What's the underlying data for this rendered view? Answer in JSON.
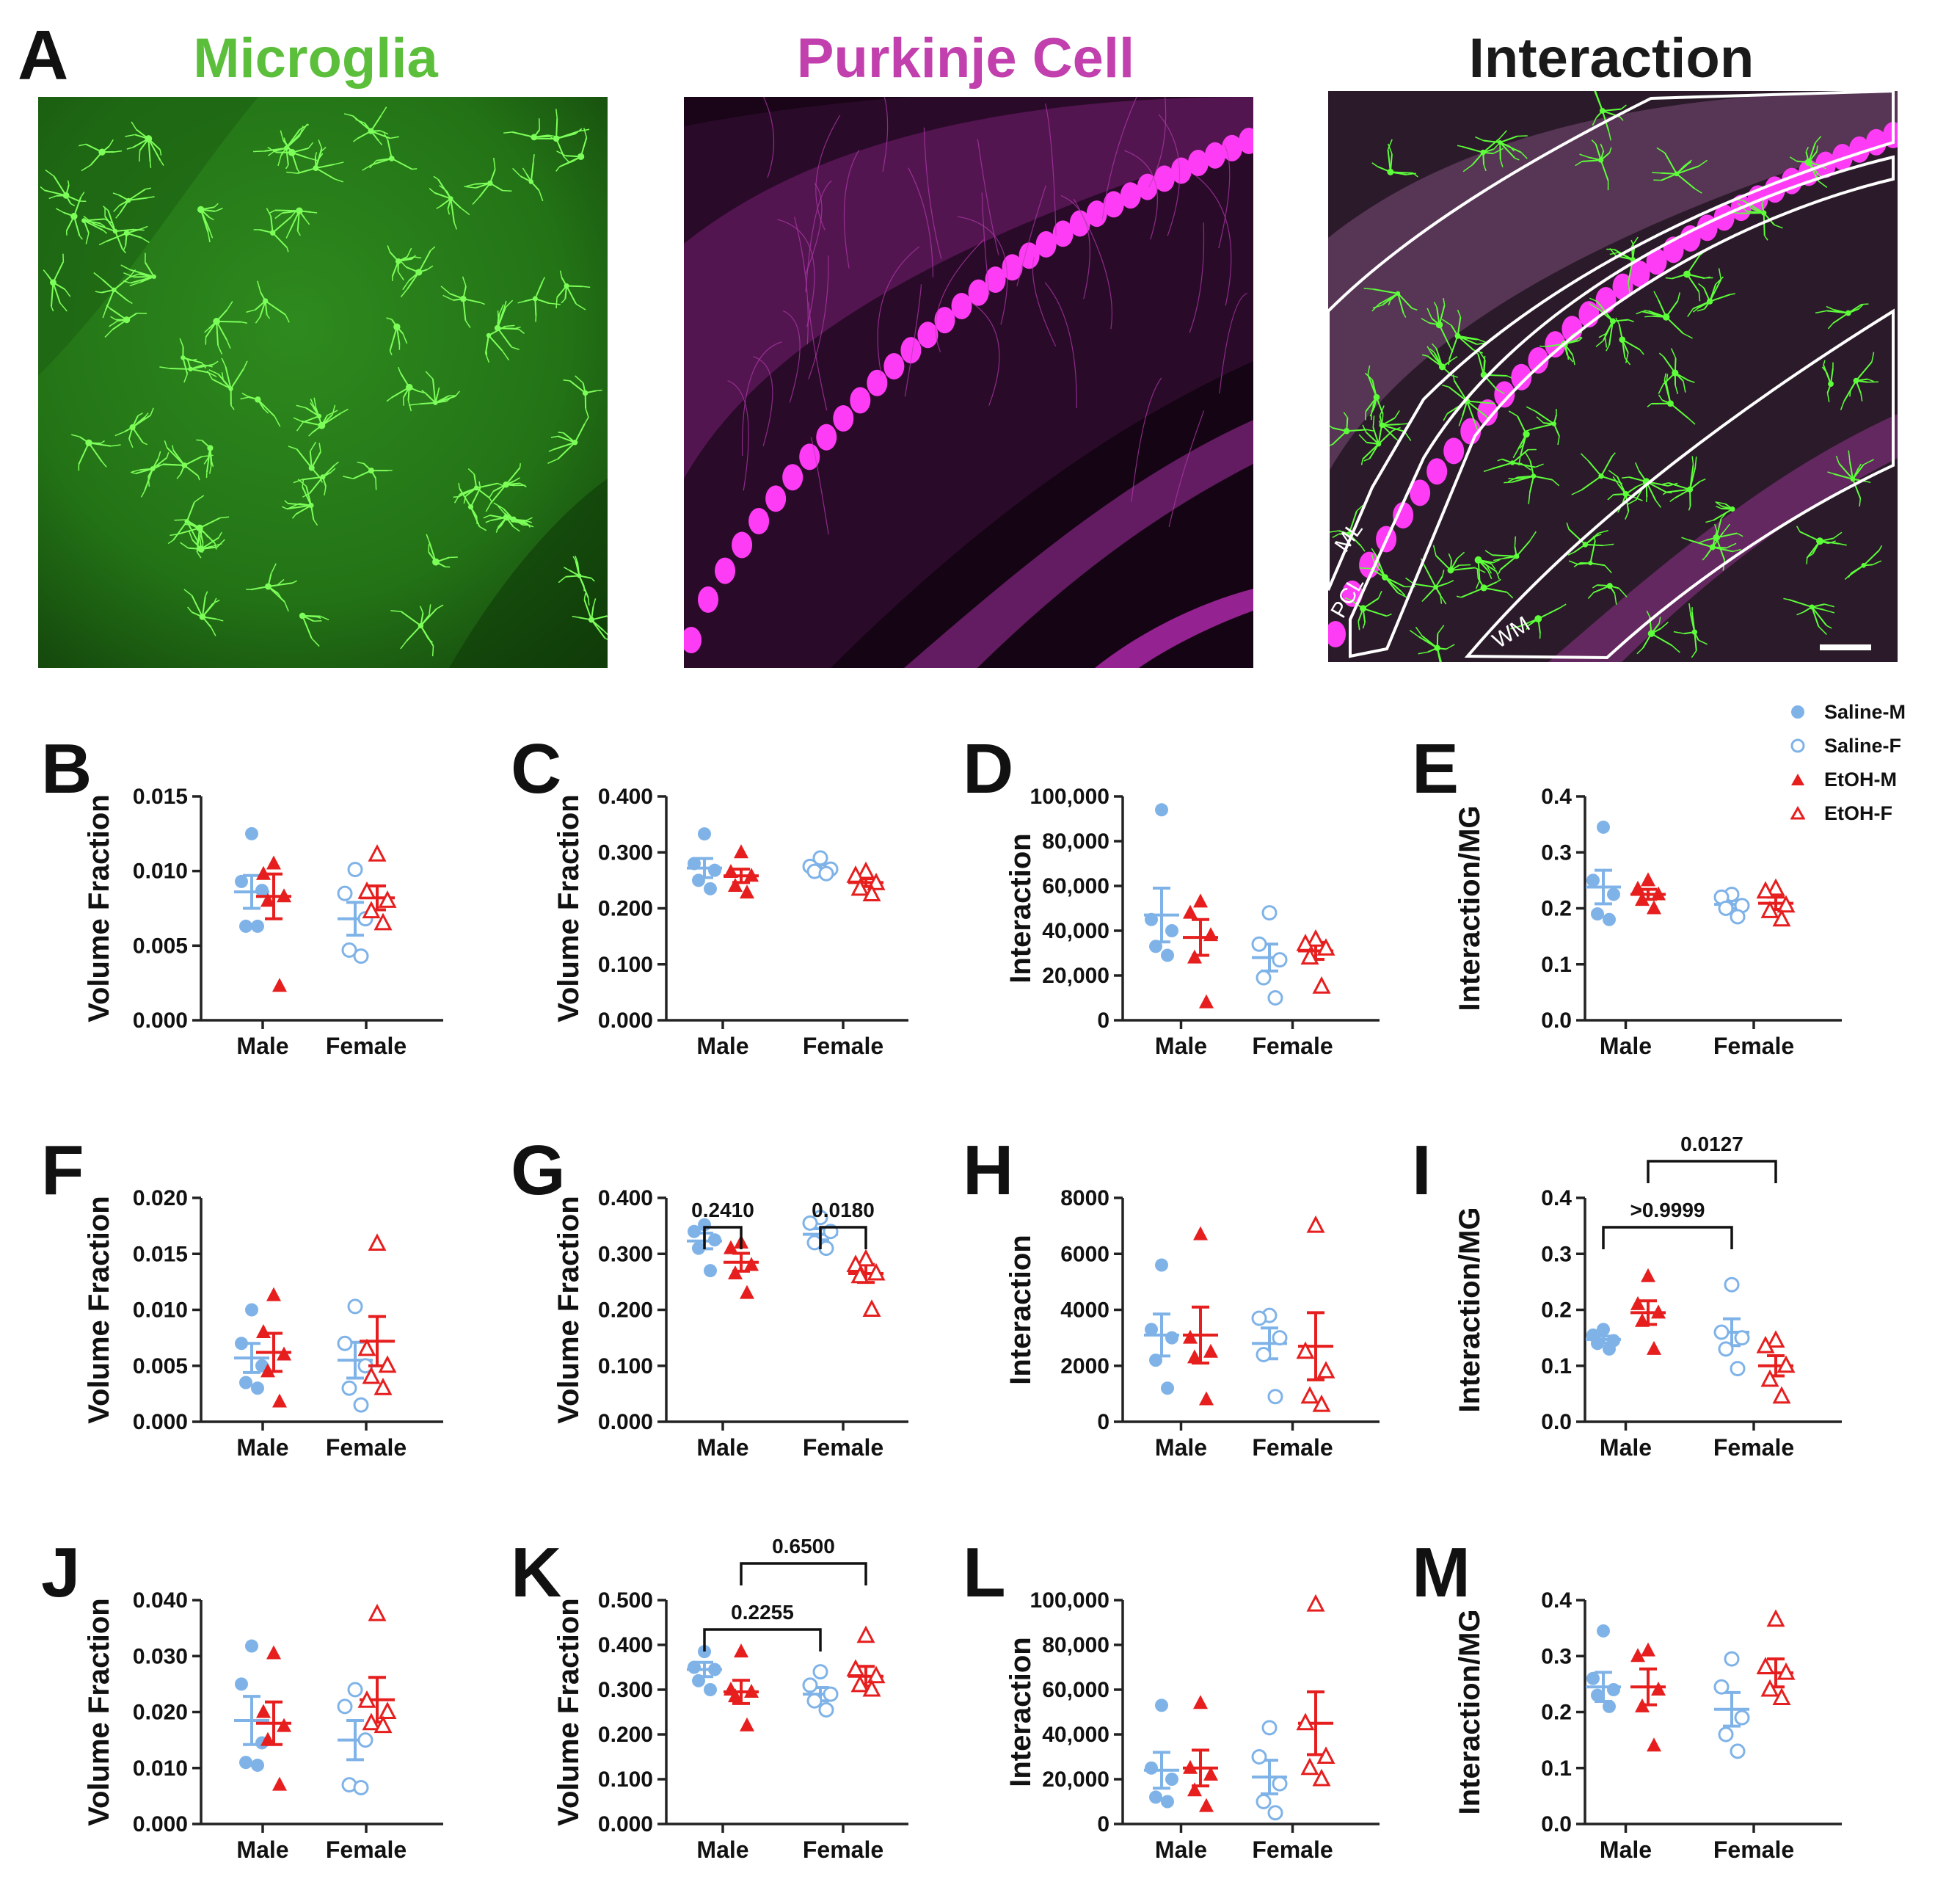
{
  "figure": {
    "panel_A": {
      "letter": "A",
      "images": [
        {
          "title": "Microglia",
          "title_color": "#5cbf3b"
        },
        {
          "title": "Purkinje Cell",
          "title_color": "#c23fae"
        },
        {
          "title": "Interaction",
          "title_color": "#1a1a1a",
          "region_labels": [
            "ML",
            "PCL",
            "WM"
          ]
        }
      ]
    },
    "legend": [
      {
        "label": "Saline-M",
        "marker": "filled-circle",
        "color": "#7fb3e8"
      },
      {
        "label": "Saline-F",
        "marker": "open-circle",
        "color": "#7fb3e8"
      },
      {
        "label": "EtOH-M",
        "marker": "filled-triangle",
        "color": "#e61e1e"
      },
      {
        "label": "EtOH-F",
        "marker": "open-triangle",
        "color": "#e61e1e"
      }
    ],
    "colors": {
      "saline": "#7fb3e8",
      "etoh": "#e61e1e"
    }
  },
  "chart_data": [
    {
      "panel": "B",
      "type": "scatter",
      "ylabel": "Volume Fraction",
      "categories": [
        "Male",
        "Female"
      ],
      "yticks": [
        "0.000",
        "0.005",
        "0.010",
        "0.015"
      ],
      "ylim": [
        0,
        0.015
      ],
      "series": [
        {
          "name": "Saline-M",
          "group": "Male",
          "values": [
            0.0125,
            0.0093,
            0.0087,
            0.0063,
            0.0063
          ],
          "mean": 0.0086,
          "sem": 0.0011
        },
        {
          "name": "EtOH-M",
          "group": "Male",
          "values": [
            0.0105,
            0.0098,
            0.0083,
            0.008,
            0.0023
          ],
          "mean": 0.0083,
          "sem": 0.0015
        },
        {
          "name": "Saline-F",
          "group": "Female",
          "values": [
            0.0101,
            0.0085,
            0.0068,
            0.0047,
            0.0043
          ],
          "mean": 0.0068,
          "sem": 0.0011
        },
        {
          "name": "EtOH-F",
          "group": "Female",
          "values": [
            0.0111,
            0.0086,
            0.008,
            0.0073,
            0.0065
          ],
          "mean": 0.0082,
          "sem": 0.0008
        }
      ],
      "annotations": []
    },
    {
      "panel": "C",
      "type": "scatter",
      "ylabel": "Volume Fraction",
      "categories": [
        "Male",
        "Female"
      ],
      "yticks": [
        "0.000",
        "0.100",
        "0.200",
        "0.300",
        "0.400"
      ],
      "ylim": [
        0,
        0.4
      ],
      "series": [
        {
          "name": "Saline-M",
          "group": "Male",
          "values": [
            0.333,
            0.28,
            0.268,
            0.25,
            0.235
          ],
          "mean": 0.272,
          "sem": 0.017
        },
        {
          "name": "EtOH-M",
          "group": "Male",
          "values": [
            0.3,
            0.265,
            0.258,
            0.24,
            0.228
          ],
          "mean": 0.258,
          "sem": 0.012
        },
        {
          "name": "Saline-F",
          "group": "Female",
          "values": [
            0.29,
            0.275,
            0.27,
            0.266,
            0.262
          ],
          "mean": 0.272,
          "sem": 0.006
        },
        {
          "name": "EtOH-F",
          "group": "Female",
          "values": [
            0.265,
            0.258,
            0.245,
            0.235,
            0.225
          ],
          "mean": 0.246,
          "sem": 0.007
        }
      ],
      "annotations": []
    },
    {
      "panel": "D",
      "type": "scatter",
      "ylabel": "Interaction",
      "categories": [
        "Male",
        "Female"
      ],
      "yticks": [
        "0",
        "20,000",
        "40,000",
        "60,000",
        "80,000",
        "100,000"
      ],
      "ylim": [
        0,
        100000
      ],
      "series": [
        {
          "name": "Saline-M",
          "group": "Male",
          "values": [
            94000,
            45000,
            40000,
            33000,
            29000
          ],
          "mean": 47000,
          "sem": 12000
        },
        {
          "name": "EtOH-M",
          "group": "Male",
          "values": [
            53000,
            48000,
            38000,
            28000,
            8000
          ],
          "mean": 37000,
          "sem": 8000
        },
        {
          "name": "Saline-F",
          "group": "Female",
          "values": [
            48000,
            34000,
            27000,
            19000,
            10000
          ],
          "mean": 28000,
          "sem": 6000
        },
        {
          "name": "EtOH-F",
          "group": "Female",
          "values": [
            36000,
            34000,
            32000,
            28000,
            15000
          ],
          "mean": 31000,
          "sem": 3800
        }
      ],
      "annotations": []
    },
    {
      "panel": "E",
      "type": "scatter",
      "ylabel": "Interaction/MG",
      "categories": [
        "Male",
        "Female"
      ],
      "yticks": [
        "0.0",
        "0.1",
        "0.2",
        "0.3",
        "0.4"
      ],
      "ylim": [
        0,
        0.4
      ],
      "series": [
        {
          "name": "Saline-M",
          "group": "Male",
          "values": [
            0.345,
            0.25,
            0.225,
            0.19,
            0.18
          ],
          "mean": 0.238,
          "sem": 0.03
        },
        {
          "name": "EtOH-M",
          "group": "Male",
          "values": [
            0.25,
            0.235,
            0.225,
            0.215,
            0.2
          ],
          "mean": 0.225,
          "sem": 0.009
        },
        {
          "name": "Saline-F",
          "group": "Female",
          "values": [
            0.225,
            0.22,
            0.205,
            0.2,
            0.185
          ],
          "mean": 0.207,
          "sem": 0.007
        },
        {
          "name": "EtOH-F",
          "group": "Female",
          "values": [
            0.235,
            0.23,
            0.205,
            0.195,
            0.18
          ],
          "mean": 0.209,
          "sem": 0.011
        }
      ],
      "annotations": []
    },
    {
      "panel": "F",
      "type": "scatter",
      "ylabel": "Volume Fraction",
      "categories": [
        "Male",
        "Female"
      ],
      "yticks": [
        "0.000",
        "0.005",
        "0.010",
        "0.015",
        "0.020"
      ],
      "ylim": [
        0,
        0.02
      ],
      "series": [
        {
          "name": "Saline-M",
          "group": "Male",
          "values": [
            0.01,
            0.007,
            0.005,
            0.0035,
            0.003
          ],
          "mean": 0.0057,
          "sem": 0.0013
        },
        {
          "name": "EtOH-M",
          "group": "Male",
          "values": [
            0.0113,
            0.008,
            0.006,
            0.0045,
            0.0018
          ],
          "mean": 0.0062,
          "sem": 0.0017
        },
        {
          "name": "Saline-F",
          "group": "Female",
          "values": [
            0.0103,
            0.007,
            0.005,
            0.003,
            0.0015
          ],
          "mean": 0.0055,
          "sem": 0.0016
        },
        {
          "name": "EtOH-F",
          "group": "Female",
          "values": [
            0.0159,
            0.0065,
            0.005,
            0.004,
            0.003
          ],
          "mean": 0.0072,
          "sem": 0.0022
        }
      ],
      "annotations": []
    },
    {
      "panel": "G",
      "type": "scatter",
      "ylabel": "Volume Fraction",
      "categories": [
        "Male",
        "Female"
      ],
      "yticks": [
        "0.000",
        "0.100",
        "0.200",
        "0.300",
        "0.400"
      ],
      "ylim": [
        0,
        0.4
      ],
      "series": [
        {
          "name": "Saline-M",
          "group": "Male",
          "values": [
            0.352,
            0.34,
            0.325,
            0.31,
            0.27
          ],
          "mean": 0.323,
          "sem": 0.014
        },
        {
          "name": "EtOH-M",
          "group": "Male",
          "values": [
            0.32,
            0.31,
            0.28,
            0.265,
            0.23
          ],
          "mean": 0.285,
          "sem": 0.016
        },
        {
          "name": "Saline-F",
          "group": "Female",
          "values": [
            0.365,
            0.355,
            0.34,
            0.32,
            0.31
          ],
          "mean": 0.335,
          "sem": 0.01
        },
        {
          "name": "EtOH-F",
          "group": "Female",
          "values": [
            0.29,
            0.28,
            0.265,
            0.26,
            0.2
          ],
          "mean": 0.265,
          "sem": 0.016
        }
      ],
      "annotations": [
        {
          "text": "0.2410",
          "from": 0,
          "to": 1,
          "level": 0
        },
        {
          "text": "0.0180",
          "from": 2,
          "to": 3,
          "level": 0
        }
      ]
    },
    {
      "panel": "H",
      "type": "scatter",
      "ylabel": "Interaction",
      "categories": [
        "Male",
        "Female"
      ],
      "yticks": [
        "0",
        "2000",
        "4000",
        "6000",
        "8000"
      ],
      "ylim": [
        0,
        8000
      ],
      "series": [
        {
          "name": "Saline-M",
          "group": "Male",
          "values": [
            5600,
            3300,
            3000,
            2200,
            1200
          ],
          "mean": 3100,
          "sem": 750
        },
        {
          "name": "EtOH-M",
          "group": "Male",
          "values": [
            6700,
            3000,
            2500,
            2300,
            800
          ],
          "mean": 3100,
          "sem": 1000
        },
        {
          "name": "Saline-F",
          "group": "Female",
          "values": [
            3800,
            3700,
            3000,
            2400,
            900
          ],
          "mean": 2800,
          "sem": 550
        },
        {
          "name": "EtOH-F",
          "group": "Female",
          "values": [
            7000,
            2500,
            1800,
            900,
            600
          ],
          "mean": 2700,
          "sem": 1200
        }
      ],
      "annotations": []
    },
    {
      "panel": "I",
      "type": "scatter",
      "ylabel": "Interaction/MG",
      "categories": [
        "Male",
        "Female"
      ],
      "yticks": [
        "0.0",
        "0.1",
        "0.2",
        "0.3",
        "0.4"
      ],
      "ylim": [
        0,
        0.4
      ],
      "series": [
        {
          "name": "Saline-M",
          "group": "Male",
          "values": [
            0.165,
            0.155,
            0.145,
            0.14,
            0.13
          ],
          "mean": 0.147,
          "sem": 0.006
        },
        {
          "name": "EtOH-M",
          "group": "Male",
          "values": [
            0.26,
            0.21,
            0.195,
            0.18,
            0.13
          ],
          "mean": 0.195,
          "sem": 0.021
        },
        {
          "name": "Saline-F",
          "group": "Female",
          "values": [
            0.245,
            0.16,
            0.15,
            0.13,
            0.095
          ],
          "mean": 0.16,
          "sem": 0.024
        },
        {
          "name": "EtOH-F",
          "group": "Female",
          "values": [
            0.145,
            0.135,
            0.1,
            0.075,
            0.045
          ],
          "mean": 0.1,
          "sem": 0.018
        }
      ],
      "annotations": [
        {
          "text": ">0.9999",
          "from": 0,
          "to": 2,
          "level": 0
        },
        {
          "text": "0.0127",
          "from": 1,
          "to": 3,
          "level": 1
        }
      ]
    },
    {
      "panel": "J",
      "type": "scatter",
      "ylabel": "Volume Fraction",
      "categories": [
        "Male",
        "Female"
      ],
      "yticks": [
        "0.000",
        "0.010",
        "0.020",
        "0.030",
        "0.040"
      ],
      "ylim": [
        0,
        0.04
      ],
      "series": [
        {
          "name": "Saline-M",
          "group": "Male",
          "values": [
            0.0318,
            0.025,
            0.0145,
            0.011,
            0.0105
          ],
          "mean": 0.0185,
          "sem": 0.0043
        },
        {
          "name": "EtOH-M",
          "group": "Male",
          "values": [
            0.0305,
            0.02,
            0.0175,
            0.015,
            0.007
          ],
          "mean": 0.018,
          "sem": 0.0038
        },
        {
          "name": "Saline-F",
          "group": "Female",
          "values": [
            0.024,
            0.021,
            0.015,
            0.007,
            0.0065
          ],
          "mean": 0.015,
          "sem": 0.0035
        },
        {
          "name": "EtOH-F",
          "group": "Female",
          "values": [
            0.0375,
            0.022,
            0.02,
            0.018,
            0.0175
          ],
          "mean": 0.0222,
          "sem": 0.004
        }
      ],
      "annotations": []
    },
    {
      "panel": "K",
      "type": "scatter",
      "ylabel": "Volume Fraction",
      "categories": [
        "Male",
        "Female"
      ],
      "yticks": [
        "0.000",
        "0.100",
        "0.200",
        "0.300",
        "0.400",
        "0.500"
      ],
      "ylim": [
        0,
        0.5
      ],
      "series": [
        {
          "name": "Saline-M",
          "group": "Male",
          "values": [
            0.385,
            0.35,
            0.345,
            0.32,
            0.3
          ],
          "mean": 0.345,
          "sem": 0.016
        },
        {
          "name": "EtOH-M",
          "group": "Male",
          "values": [
            0.385,
            0.3,
            0.295,
            0.285,
            0.22
          ],
          "mean": 0.295,
          "sem": 0.026
        },
        {
          "name": "Saline-F",
          "group": "Female",
          "values": [
            0.34,
            0.31,
            0.29,
            0.275,
            0.255
          ],
          "mean": 0.29,
          "sem": 0.015
        },
        {
          "name": "EtOH-F",
          "group": "Female",
          "values": [
            0.42,
            0.345,
            0.33,
            0.31,
            0.3
          ],
          "mean": 0.33,
          "sem": 0.022
        }
      ],
      "annotations": [
        {
          "text": "0.2255",
          "from": 0,
          "to": 2,
          "level": 0
        },
        {
          "text": "0.6500",
          "from": 1,
          "to": 3,
          "level": 1
        }
      ]
    },
    {
      "panel": "L",
      "type": "scatter",
      "ylabel": "Interaction",
      "categories": [
        "Male",
        "Female"
      ],
      "yticks": [
        "0",
        "20,000",
        "40,000",
        "60,000",
        "80,000",
        "100,000"
      ],
      "ylim": [
        0,
        100000
      ],
      "series": [
        {
          "name": "Saline-M",
          "group": "Male",
          "values": [
            53000,
            25000,
            20000,
            12000,
            10000
          ],
          "mean": 24000,
          "sem": 8000
        },
        {
          "name": "EtOH-M",
          "group": "Male",
          "values": [
            54000,
            25000,
            22000,
            15000,
            8000
          ],
          "mean": 25000,
          "sem": 8000
        },
        {
          "name": "Saline-F",
          "group": "Female",
          "values": [
            43000,
            30000,
            18000,
            10000,
            5000
          ],
          "mean": 21000,
          "sem": 7500
        },
        {
          "name": "EtOH-F",
          "group": "Female",
          "values": [
            98000,
            45000,
            30000,
            25000,
            20000
          ],
          "mean": 45000,
          "sem": 14000
        }
      ],
      "annotations": []
    },
    {
      "panel": "M",
      "type": "scatter",
      "ylabel": "Interaction/MG",
      "categories": [
        "Male",
        "Female"
      ],
      "yticks": [
        "0.0",
        "0.1",
        "0.2",
        "0.3",
        "0.4"
      ],
      "ylim": [
        0,
        0.4
      ],
      "series": [
        {
          "name": "Saline-M",
          "group": "Male",
          "values": [
            0.345,
            0.26,
            0.24,
            0.23,
            0.21
          ],
          "mean": 0.245,
          "sem": 0.026
        },
        {
          "name": "EtOH-M",
          "group": "Male",
          "values": [
            0.31,
            0.3,
            0.24,
            0.21,
            0.14
          ],
          "mean": 0.245,
          "sem": 0.032
        },
        {
          "name": "Saline-F",
          "group": "Female",
          "values": [
            0.295,
            0.245,
            0.19,
            0.16,
            0.13
          ],
          "mean": 0.205,
          "sem": 0.03
        },
        {
          "name": "EtOH-F",
          "group": "Female",
          "values": [
            0.365,
            0.28,
            0.27,
            0.24,
            0.225
          ],
          "mean": 0.27,
          "sem": 0.025
        }
      ],
      "annotations": []
    }
  ]
}
